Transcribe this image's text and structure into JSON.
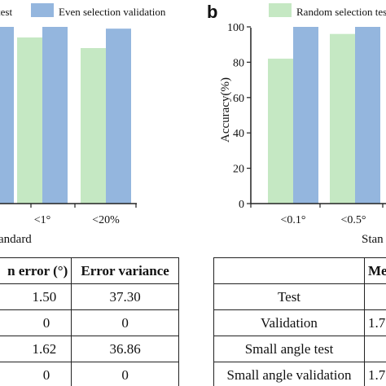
{
  "panel_a": {
    "legend": {
      "test_label": "test",
      "validation_label": "Even selection validation"
    },
    "xlabel": "andard",
    "table": {
      "headers": [
        "n error (°)",
        "Error variance"
      ],
      "rows": [
        [
          "1.50",
          "37.30"
        ],
        [
          "0",
          "0"
        ],
        [
          "1.62",
          "36.86"
        ],
        [
          "0",
          "0"
        ]
      ]
    }
  },
  "panel_b": {
    "panel_letter": "b",
    "legend": {
      "test_label": "Random selection tes"
    },
    "ylabel": "Accuracy(%)",
    "xlabel": "Stan",
    "yticks": [
      "0",
      "20",
      "40",
      "60",
      "80",
      "100"
    ],
    "table": {
      "header": "Me",
      "rows": [
        [
          "Test",
          ""
        ],
        [
          "Validation",
          "1.7"
        ],
        [
          "Small angle test",
          ""
        ],
        [
          "Small angle validation",
          "1.7"
        ]
      ]
    }
  },
  "colors": {
    "test": "#c5e8c3",
    "validation": "#94b6de"
  },
  "chart_data": [
    {
      "type": "bar",
      "categories": [
        "",
        "<1°",
        "<20%"
      ],
      "series": [
        {
          "name": "test",
          "values": [
            null,
            94,
            88
          ]
        },
        {
          "name": "Even selection validation",
          "values": [
            100,
            100,
            99
          ]
        }
      ],
      "ylim": [
        0,
        100
      ]
    },
    {
      "type": "bar",
      "title": "b",
      "categories": [
        "<0.1°",
        "<0.5°"
      ],
      "series": [
        {
          "name": "Random selection tes",
          "values": [
            82,
            96
          ]
        },
        {
          "values": [
            100,
            100
          ]
        }
      ],
      "ylabel": "Accuracy(%)",
      "xlabel": "Stan",
      "ylim": [
        0,
        100
      ],
      "yticks": [
        0,
        20,
        40,
        60,
        80,
        100
      ]
    }
  ]
}
